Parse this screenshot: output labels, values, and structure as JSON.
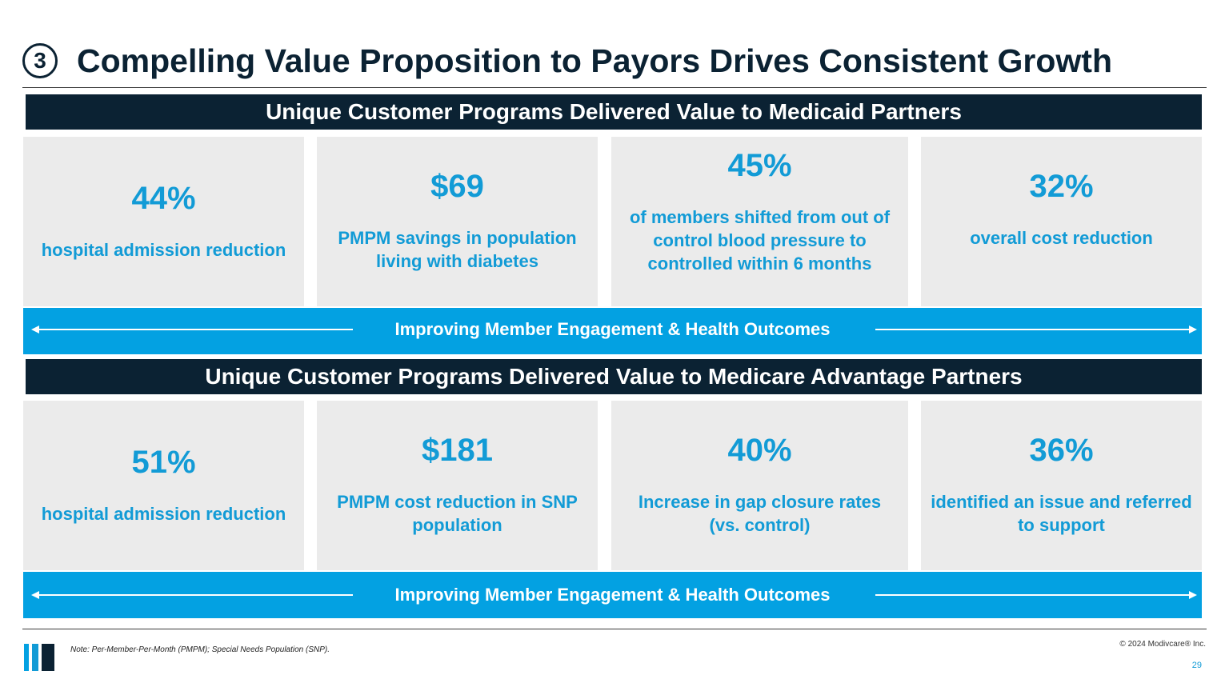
{
  "title": {
    "step_number": "3",
    "text": "Compelling Value Proposition to Payors Drives Consistent Growth"
  },
  "sections": [
    {
      "header": "Unique Customer Programs Delivered Value to Medicaid Partners",
      "cards": [
        {
          "value": "44%",
          "desc": "hospital admission reduction"
        },
        {
          "value": "$69",
          "desc": "PMPM savings in population living with diabetes"
        },
        {
          "value": "45%",
          "desc": "of members shifted from out of control blood pressure to controlled within 6 months"
        },
        {
          "value": "32%",
          "desc": "overall cost reduction"
        }
      ],
      "band": "Improving Member Engagement & Health Outcomes"
    },
    {
      "header": "Unique Customer Programs Delivered Value to Medicare Advantage Partners",
      "cards": [
        {
          "value": "51%",
          "desc": "hospital admission reduction"
        },
        {
          "value": "$181",
          "desc": "PMPM cost reduction in SNP population"
        },
        {
          "value": "40%",
          "desc": "Increase in gap closure rates (vs. control)"
        },
        {
          "value": "36%",
          "desc": "identified an issue and referred to support"
        }
      ],
      "band": "Improving Member Engagement & Health Outcomes"
    }
  ],
  "footer": {
    "note": "Note: Per-Member-Per-Month (PMPM); Special Needs Population (SNP).",
    "copyright": "© 2024 Modivcare® Inc.",
    "page_number": "29"
  },
  "colors": {
    "navy": "#0b2233",
    "accent_blue": "#03a1e2",
    "text_blue": "#129bd6",
    "card_gray": "#ebebeb"
  }
}
